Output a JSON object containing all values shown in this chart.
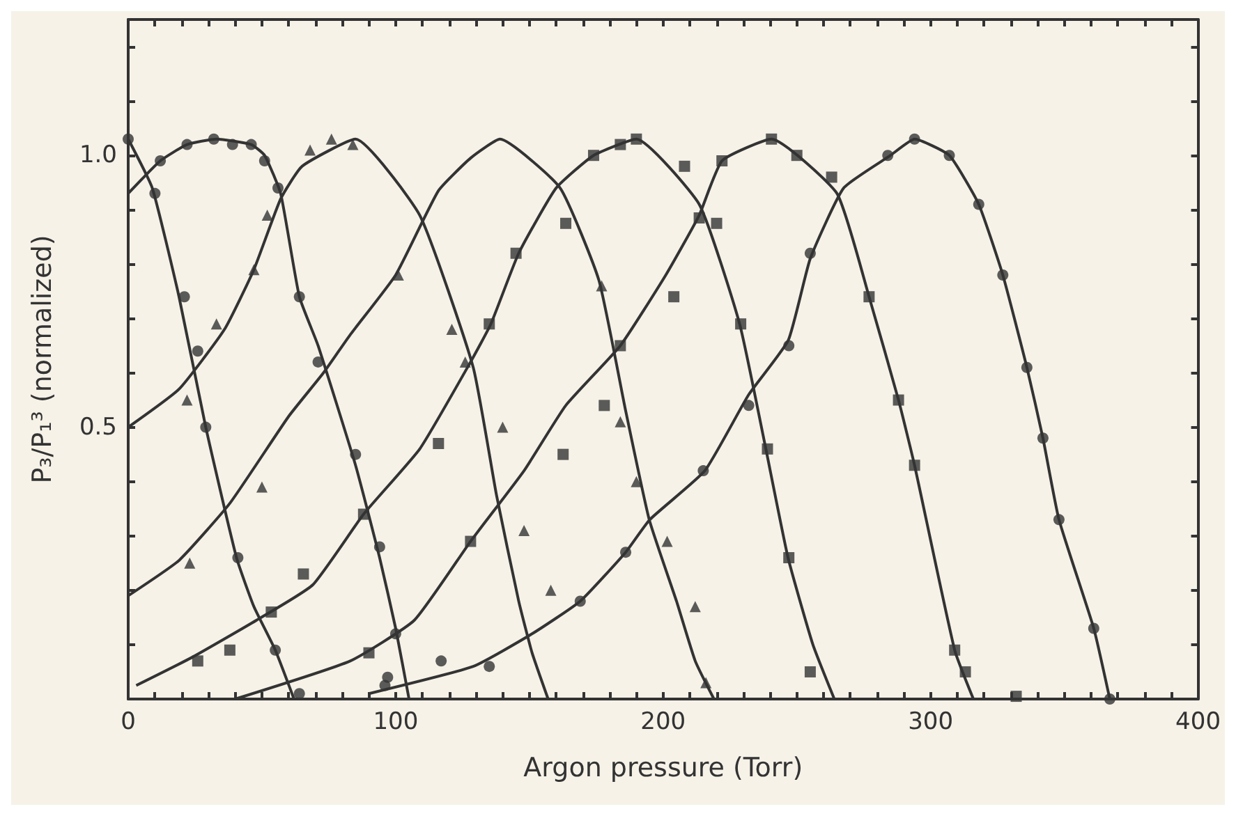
{
  "chart_data": {
    "type": "line",
    "xlabel": "Argon pressure (Torr)",
    "ylabel": "P₃/P₁³ (normalized)",
    "xlim": [
      0,
      400
    ],
    "ylim": [
      0,
      1.25
    ],
    "xticks": [
      0,
      {
        "value": 10,
        "label": null
      },
      {
        "value": 20,
        "label": null
      },
      {
        "value": 30,
        "label": null
      },
      {
        "value": 40,
        "label": null
      },
      {
        "value": 50,
        "label": null
      },
      {
        "value": 60,
        "label": null
      },
      {
        "value": 70,
        "label": null
      },
      {
        "value": 80,
        "label": null
      },
      {
        "value": 90,
        "label": null
      },
      100,
      {
        "value": 110,
        "label": null
      },
      {
        "value": 120,
        "label": null
      },
      {
        "value": 130,
        "label": null
      },
      {
        "value": 140,
        "label": null
      },
      {
        "value": 150,
        "label": null
      },
      {
        "value": 160,
        "label": null
      },
      {
        "value": 170,
        "label": null
      },
      {
        "value": 180,
        "label": null
      },
      {
        "value": 190,
        "label": null
      },
      200,
      {
        "value": 210,
        "label": null
      },
      {
        "value": 220,
        "label": null
      },
      {
        "value": 230,
        "label": null
      },
      {
        "value": 240,
        "label": null
      },
      {
        "value": 250,
        "label": null
      },
      {
        "value": 260,
        "label": null
      },
      {
        "value": 270,
        "label": null
      },
      {
        "value": 280,
        "label": null
      },
      {
        "value": 290,
        "label": null
      },
      300,
      {
        "value": 310,
        "label": null
      },
      {
        "value": 320,
        "label": null
      },
      {
        "value": 330,
        "label": null
      },
      {
        "value": 340,
        "label": null
      },
      {
        "value": 350,
        "label": null
      },
      {
        "value": 360,
        "label": null
      },
      {
        "value": 370,
        "label": null
      },
      {
        "value": 380,
        "label": null
      },
      {
        "value": 390,
        "label": null
      },
      400
    ],
    "yticks": [
      {
        "value": 0,
        "label": null
      },
      {
        "value": 0.1,
        "label": null
      },
      {
        "value": 0.2,
        "label": null
      },
      {
        "value": 0.3,
        "label": null
      },
      {
        "value": 0.4,
        "label": null
      },
      0.5,
      {
        "value": 0.6,
        "label": null
      },
      {
        "value": 0.7,
        "label": null
      },
      {
        "value": 0.8,
        "label": null
      },
      {
        "value": 0.9,
        "label": null
      },
      {
        "value": 1,
        "label": "1.0"
      },
      {
        "value": 1.1,
        "label": null
      },
      {
        "value": 1.2,
        "label": null
      }
    ],
    "grid": false,
    "series": [
      {
        "color": "#333333",
        "marker": "none",
        "x": [
          0,
          9,
          19,
          29,
          40.5,
          47,
          55,
          62
        ],
        "values": [
          1.03,
          0.94,
          0.74,
          0.5,
          0.26,
          0.17,
          0.09,
          0
        ]
      },
      {
        "color": "#333333",
        "marker": "none",
        "x": [
          0,
          12,
          22,
          33,
          46,
          51,
          57,
          64,
          71,
          85,
          94,
          100,
          105
        ],
        "values": [
          0.93,
          0.99,
          1.02,
          1.03,
          1.02,
          1,
          0.93,
          0.74,
          0.65,
          0.43,
          0.26,
          0.13,
          0
        ]
      },
      {
        "color": "#333333",
        "marker": "none",
        "x": [
          0,
          19,
          36,
          47,
          57,
          65,
          85,
          109,
          129,
          137.7,
          146,
          151,
          157
        ],
        "values": [
          0.5,
          0.57,
          0.68,
          0.79,
          0.92,
          0.98,
          1.03,
          0.89,
          0.61,
          0.375,
          0.18,
          0.085,
          0
        ]
      },
      {
        "color": "#333333",
        "marker": "none",
        "x": [
          0,
          19,
          38,
          60,
          73,
          83,
          100,
          116,
          128,
          139,
          161.5,
          176,
          186,
          194.8,
          205,
          212,
          219
        ],
        "values": [
          0.19,
          0.255,
          0.36,
          0.52,
          0.6,
          0.67,
          0.78,
          0.935,
          0.995,
          1.03,
          0.94,
          0.77,
          0.53,
          0.33,
          0.18,
          0.07,
          0
        ]
      },
      {
        "color": "#333333",
        "marker": "none",
        "x": [
          3,
          24,
          48,
          69,
          88,
          109,
          128,
          135.6,
          146,
          160,
          174,
          190,
          213.5,
          228.6,
          238,
          246.7,
          256,
          264
        ],
        "values": [
          0.025,
          0.077,
          0.145,
          0.21,
          0.34,
          0.46,
          0.62,
          0.69,
          0.82,
          0.94,
          1,
          1.03,
          0.91,
          0.69,
          0.47,
          0.26,
          0.1,
          0
        ]
      },
      {
        "color": "#333333",
        "marker": "none",
        "x": [
          40,
          83,
          107,
          128,
          148,
          163.6,
          184,
          201,
          213.5,
          222,
          240.5,
          265,
          277,
          288,
          294,
          309,
          316
        ],
        "values": [
          0,
          0.07,
          0.145,
          0.29,
          0.42,
          0.54,
          0.65,
          0.78,
          0.89,
          0.99,
          1.03,
          0.93,
          0.74,
          0.55,
          0.43,
          0.09,
          0
        ]
      },
      {
        "color": "#333333",
        "marker": "none",
        "x": [
          90,
          129,
          151,
          169,
          186,
          195,
          215.6,
          232,
          246.8,
          255,
          267.5,
          285,
          294,
          307,
          318,
          327,
          336,
          342,
          348,
          361,
          367
        ],
        "values": [
          0.01,
          0.06,
          0.12,
          0.18,
          0.27,
          0.33,
          0.42,
          0.56,
          0.66,
          0.81,
          0.94,
          1,
          1.03,
          1,
          0.91,
          0.78,
          0.61,
          0.48,
          0.33,
          0.13,
          0
        ]
      },
      {
        "type": "scatter",
        "color": "#333333",
        "marker": "circle",
        "x": [
          10,
          21,
          26,
          29,
          41,
          55,
          64
        ],
        "values": [
          0.93,
          0.74,
          0.64,
          0.5,
          0.26,
          0.09,
          0.01
        ]
      },
      {
        "type": "scatter",
        "color": "#333333",
        "marker": "circle",
        "x": [
          0,
          12,
          22,
          32,
          39,
          46,
          51,
          56,
          64,
          71,
          85,
          94,
          100,
          97
        ],
        "values": [
          1.03,
          0.99,
          1.02,
          1.03,
          1.02,
          1.02,
          0.99,
          0.94,
          0.74,
          0.62,
          0.45,
          0.28,
          0.12,
          0.04
        ]
      },
      {
        "type": "scatter",
        "color": "#333333",
        "marker": "triangle",
        "x": [
          22,
          33,
          47,
          52,
          50,
          68,
          76,
          84,
          101,
          121,
          126,
          140,
          148,
          158
        ],
        "values": [
          0.55,
          0.69,
          0.79,
          0.89,
          0.39,
          1.01,
          1.03,
          1.02,
          0.78,
          0.68,
          0.62,
          0.5,
          0.31,
          0.2
        ]
      },
      {
        "type": "scatter",
        "color": "#333333",
        "marker": "triangle",
        "x": [
          23,
          177,
          184,
          190,
          201.5,
          212,
          216
        ],
        "values": [
          0.25,
          0.76,
          0.51,
          0.4,
          0.29,
          0.17,
          0.03
        ]
      },
      {
        "type": "scatter",
        "color": "#333333",
        "marker": "square",
        "x": [
          26,
          38,
          53.5,
          65.5,
          88,
          116,
          135,
          145,
          163.6,
          174,
          184,
          190,
          208,
          220,
          229,
          239,
          247,
          255
        ],
        "values": [
          0.07,
          0.09,
          0.16,
          0.23,
          0.34,
          0.47,
          0.69,
          0.82,
          0.875,
          1,
          1.02,
          1.03,
          0.98,
          0.875,
          0.69,
          0.46,
          0.26,
          0.05
        ]
      },
      {
        "type": "scatter",
        "color": "#333333",
        "marker": "square",
        "x": [
          90,
          128,
          162.6,
          178,
          184,
          204,
          213.5,
          222,
          240.5,
          250,
          263,
          277,
          288,
          294,
          309,
          313,
          332
        ],
        "values": [
          0.085,
          0.29,
          0.45,
          0.54,
          0.65,
          0.74,
          0.885,
          0.99,
          1.03,
          1,
          0.96,
          0.74,
          0.55,
          0.43,
          0.09,
          0.05,
          0.005
        ]
      },
      {
        "type": "scatter",
        "color": "#333333",
        "marker": "circle",
        "x": [
          96,
          117,
          135,
          169,
          186,
          215,
          232,
          247,
          255,
          284,
          294,
          307,
          318,
          327,
          336,
          342,
          348,
          361,
          367
        ],
        "values": [
          0.025,
          0.07,
          0.06,
          0.18,
          0.27,
          0.42,
          0.54,
          0.65,
          0.82,
          1,
          1.03,
          1,
          0.91,
          0.78,
          0.61,
          0.48,
          0.33,
          0.13,
          0
        ]
      }
    ]
  }
}
